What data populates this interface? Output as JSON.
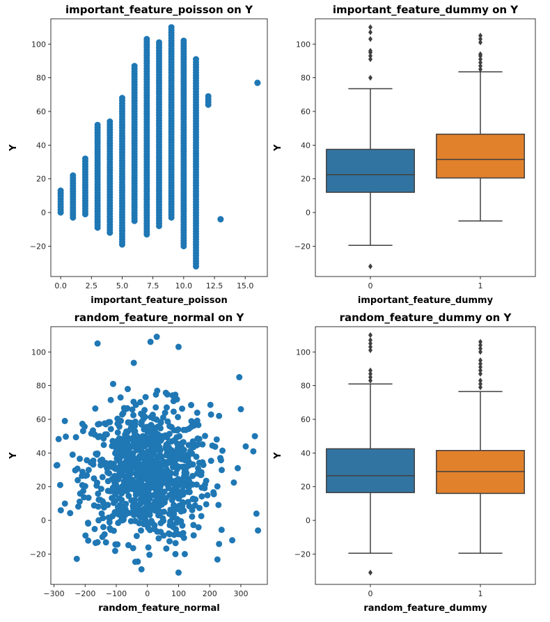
{
  "chart_data": [
    {
      "type": "scatter",
      "title": "important_feature_poisson on Y",
      "xlabel": "important_feature_poisson",
      "ylabel": "Y",
      "xlim": [
        -0.8,
        16.8
      ],
      "ylim": [
        -38,
        115
      ],
      "xticks": [
        0.0,
        2.5,
        5.0,
        7.5,
        10.0,
        12.5,
        15.0
      ],
      "xtick_labels": [
        "0.0",
        "2.5",
        "5.0",
        "7.5",
        "10.0",
        "12.5",
        "15.0"
      ],
      "yticks": [
        -20,
        0,
        20,
        40,
        60,
        80,
        100
      ],
      "ytick_labels": [
        "−20",
        "0",
        "20",
        "40",
        "60",
        "80",
        "100"
      ],
      "color": "#1f77b4",
      "grid": false,
      "columns": [
        {
          "x": 0,
          "ymin": 0,
          "ymax": 13
        },
        {
          "x": 1,
          "ymin": -3,
          "ymax": 22
        },
        {
          "x": 2,
          "ymin": -1,
          "ymax": 32
        },
        {
          "x": 3,
          "ymin": -9,
          "ymax": 52
        },
        {
          "x": 4,
          "ymin": -12,
          "ymax": 54
        },
        {
          "x": 5,
          "ymin": -19,
          "ymax": 68
        },
        {
          "x": 6,
          "ymin": -5,
          "ymax": 87
        },
        {
          "x": 7,
          "ymin": -13,
          "ymax": 103
        },
        {
          "x": 8,
          "ymin": -8,
          "ymax": 101
        },
        {
          "x": 9,
          "ymin": -3,
          "ymax": 110
        },
        {
          "x": 10,
          "ymin": -20,
          "ymax": 102
        },
        {
          "x": 11,
          "ymin": -32,
          "ymax": 91
        },
        {
          "x": 12,
          "ymin": 64,
          "ymax": 69
        },
        {
          "x": 13,
          "ymin": -4,
          "ymax": -4
        },
        {
          "x": 16,
          "ymin": 77,
          "ymax": 77
        }
      ]
    },
    {
      "type": "box",
      "title": "important_feature_dummy on Y",
      "xlabel": "important_feature_dummy",
      "ylabel": "Y",
      "ylim": [
        -38,
        115
      ],
      "yticks": [
        -20,
        0,
        20,
        40,
        60,
        80,
        100
      ],
      "ytick_labels": [
        "−20",
        "0",
        "20",
        "40",
        "60",
        "80",
        "100"
      ],
      "categories": [
        "0",
        "1"
      ],
      "boxes": [
        {
          "category": "0",
          "color": "#3274a1",
          "whislo": -19.5,
          "q1": 12,
          "med": 22.5,
          "q3": 37.5,
          "whishi": 73.5,
          "fliers": [
            -32,
            80,
            91,
            93,
            95,
            96,
            103,
            107,
            110
          ]
        },
        {
          "category": "1",
          "color": "#e1812c",
          "whislo": -5,
          "q1": 20.5,
          "med": 31.5,
          "q3": 46.5,
          "whishi": 83.5,
          "fliers": [
            85,
            87,
            89,
            91,
            93,
            94,
            101,
            103,
            105
          ]
        }
      ]
    },
    {
      "type": "scatter",
      "title": "random_feature_normal on Y",
      "xlabel": "random_feature_normal",
      "ylabel": "Y",
      "xlim": [
        -310,
        385
      ],
      "ylim": [
        -38,
        115
      ],
      "xticks": [
        -300,
        -200,
        -100,
        0,
        100,
        200,
        300
      ],
      "xtick_labels": [
        "−300",
        "−200",
        "−100",
        "0",
        "100",
        "200",
        "300"
      ],
      "yticks": [
        -20,
        0,
        20,
        40,
        60,
        80,
        100
      ],
      "ytick_labels": [
        "−20",
        "0",
        "20",
        "40",
        "60",
        "80",
        "100"
      ],
      "color": "#1f77b4",
      "grid": false,
      "cloud": {
        "center_x": 0,
        "center_y": 28,
        "spread_x": 100,
        "spread_y": 20,
        "count": 900
      },
      "points": [
        {
          "x": -280,
          "y": 21
        },
        {
          "x": -278,
          "y": 6
        },
        {
          "x": -265,
          "y": 59
        },
        {
          "x": -160,
          "y": 105
        },
        {
          "x": -240,
          "y": 39
        },
        {
          "x": -190,
          "y": -12
        },
        {
          "x": -160,
          "y": -13
        },
        {
          "x": 30,
          "y": 109
        },
        {
          "x": 100,
          "y": 103
        },
        {
          "x": 10,
          "y": 106
        },
        {
          "x": 100,
          "y": -31
        },
        {
          "x": 90,
          "y": -20
        },
        {
          "x": 120,
          "y": -20
        },
        {
          "x": 230,
          "y": -14
        },
        {
          "x": 295,
          "y": 85
        },
        {
          "x": 300,
          "y": 66
        },
        {
          "x": 345,
          "y": 50
        },
        {
          "x": 350,
          "y": 4
        },
        {
          "x": 355,
          "y": -6
        },
        {
          "x": 340,
          "y": 41
        },
        {
          "x": 290,
          "y": 31
        },
        {
          "x": -110,
          "y": 81
        },
        {
          "x": 230,
          "y": 62
        }
      ]
    },
    {
      "type": "box",
      "title": "random_feature_dummy on Y",
      "xlabel": "random_feature_dummy",
      "ylabel": "Y",
      "ylim": [
        -38,
        115
      ],
      "yticks": [
        -20,
        0,
        20,
        40,
        60,
        80,
        100
      ],
      "ytick_labels": [
        "−20",
        "0",
        "20",
        "40",
        "60",
        "80",
        "100"
      ],
      "categories": [
        "0",
        "1"
      ],
      "boxes": [
        {
          "category": "0",
          "color": "#3274a1",
          "whislo": -19.5,
          "q1": 16.5,
          "med": 26.5,
          "q3": 42.5,
          "whishi": 81,
          "fliers": [
            -31,
            83,
            85,
            87,
            89,
            101,
            103,
            105,
            107,
            110
          ]
        },
        {
          "category": "1",
          "color": "#e1812c",
          "whislo": -19.5,
          "q1": 16,
          "med": 29,
          "q3": 41.5,
          "whishi": 76.5,
          "fliers": [
            79,
            81,
            83,
            87,
            89,
            91,
            93,
            95,
            100,
            102,
            104,
            106
          ]
        }
      ]
    }
  ]
}
